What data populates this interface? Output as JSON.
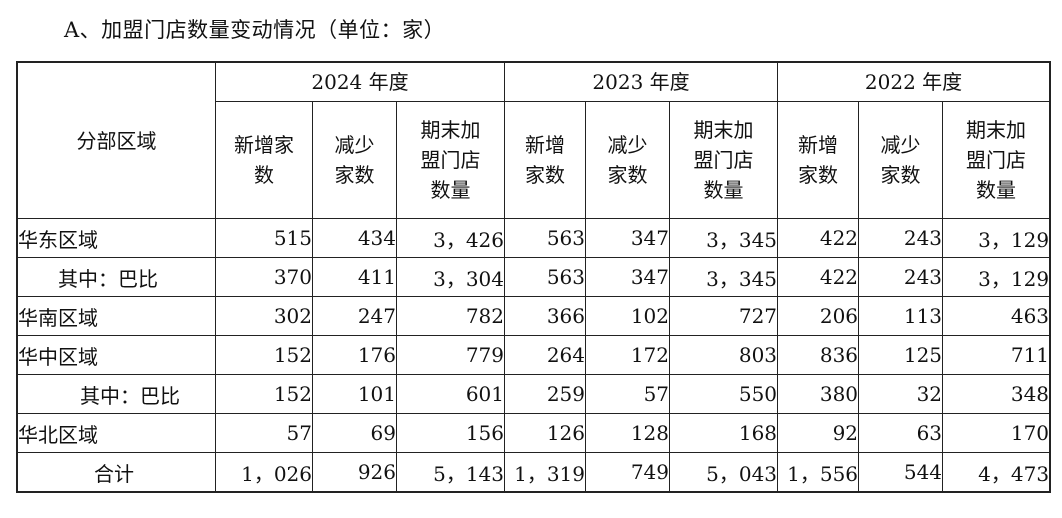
{
  "title": "A、加盟门店数量变动情况（单位：家）",
  "header": {
    "region_label": "分部区域",
    "years": [
      "2024 年度",
      "2023 年度",
      "2022 年度"
    ],
    "sub_cols": {
      "new_line1": "新增家",
      "new_line2": "数",
      "new_alt_line1": "新增",
      "new_alt_line2": "家数",
      "reduce_line1": "减少",
      "reduce_line2": "家数",
      "end_line1": "期末加",
      "end_line2": "盟门店",
      "end_line3": "数量"
    }
  },
  "rows": [
    {
      "region": "华东区域",
      "v": [
        "515",
        "434",
        "3，426",
        "563",
        "347",
        "3，345",
        "422",
        "243",
        "3，129"
      ]
    },
    {
      "region": "其中：巴比",
      "v": [
        "370",
        "411",
        "3，304",
        "563",
        "347",
        "3，345",
        "422",
        "243",
        "3，129"
      ]
    },
    {
      "region": "华南区域",
      "v": [
        "302",
        "247",
        "782",
        "366",
        "102",
        "727",
        "206",
        "113",
        "463"
      ]
    },
    {
      "region": "华中区域",
      "v": [
        "152",
        "176",
        "779",
        "264",
        "172",
        "803",
        "836",
        "125",
        "711"
      ]
    },
    {
      "region": "其中：巴比",
      "v": [
        "152",
        "101",
        "601",
        "259",
        "57",
        "550",
        "380",
        "32",
        "348"
      ]
    },
    {
      "region": "华北区域",
      "v": [
        "57",
        "69",
        "156",
        "126",
        "128",
        "168",
        "92",
        "63",
        "170"
      ]
    },
    {
      "region": "合计",
      "v": [
        "1，026",
        "926",
        "5，143",
        "1，319",
        "749",
        "5，043",
        "1，556",
        "544",
        "4，473"
      ]
    }
  ]
}
